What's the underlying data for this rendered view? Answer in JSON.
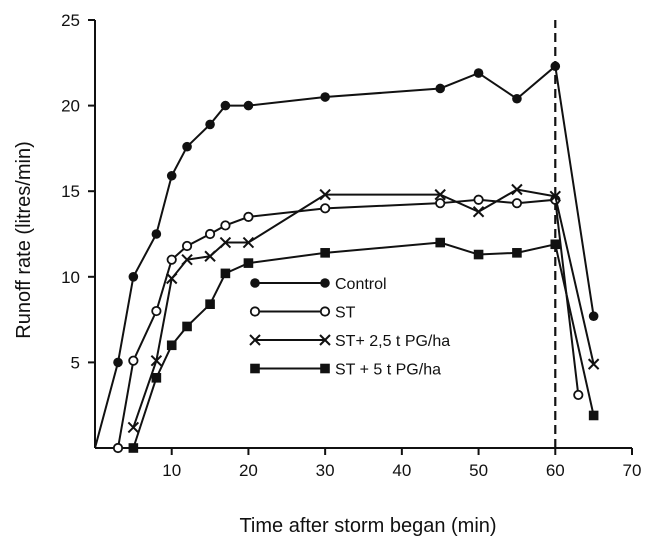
{
  "chart_data": {
    "type": "line",
    "xlabel": "Time after storm began (min)",
    "ylabel": "Runoff rate (litres/min)",
    "xlim": [
      0,
      70
    ],
    "ylim": [
      0,
      25
    ],
    "xticks": [
      10,
      20,
      30,
      40,
      50,
      60,
      70
    ],
    "yticks": [
      5,
      10,
      15,
      20,
      25
    ],
    "grid": false,
    "legend_position": "center",
    "annotations": [
      {
        "type": "vertical-dashed-line",
        "x": 60
      }
    ],
    "series": [
      {
        "name": "Control",
        "marker": "filled-circle",
        "x": [
          0,
          3,
          5,
          8,
          10,
          12,
          15,
          17,
          20,
          30,
          45,
          50,
          55,
          60,
          65
        ],
        "y": [
          0,
          5,
          10,
          12.5,
          15.9,
          17.6,
          18.9,
          20,
          20,
          20.5,
          21,
          21.9,
          20.4,
          22.3,
          7.7
        ]
      },
      {
        "name": "ST",
        "marker": "open-circle",
        "x": [
          3,
          5,
          8,
          10,
          12,
          15,
          17,
          20,
          30,
          45,
          50,
          55,
          60,
          63
        ],
        "y": [
          0,
          5.1,
          8,
          11,
          11.8,
          12.5,
          13,
          13.5,
          14,
          14.3,
          14.5,
          14.3,
          14.5,
          3.1
        ]
      },
      {
        "name": "ST+ 2,5 t PG/ha",
        "marker": "x",
        "x": [
          5,
          8,
          10,
          12,
          15,
          17,
          20,
          30,
          45,
          50,
          55,
          60,
          65
        ],
        "y": [
          1.2,
          5.1,
          9.9,
          11,
          11.2,
          12,
          12,
          14.8,
          14.8,
          13.8,
          15.1,
          14.7,
          4.9
        ]
      },
      {
        "name": "ST + 5  t PG/ha",
        "marker": "filled-square",
        "x": [
          5,
          8,
          10,
          12,
          15,
          17,
          20,
          30,
          45,
          50,
          55,
          60,
          65
        ],
        "y": [
          0,
          4.1,
          6,
          7.1,
          8.4,
          10.2,
          10.8,
          11.4,
          12,
          11.3,
          11.4,
          11.9,
          1.9
        ]
      }
    ]
  }
}
